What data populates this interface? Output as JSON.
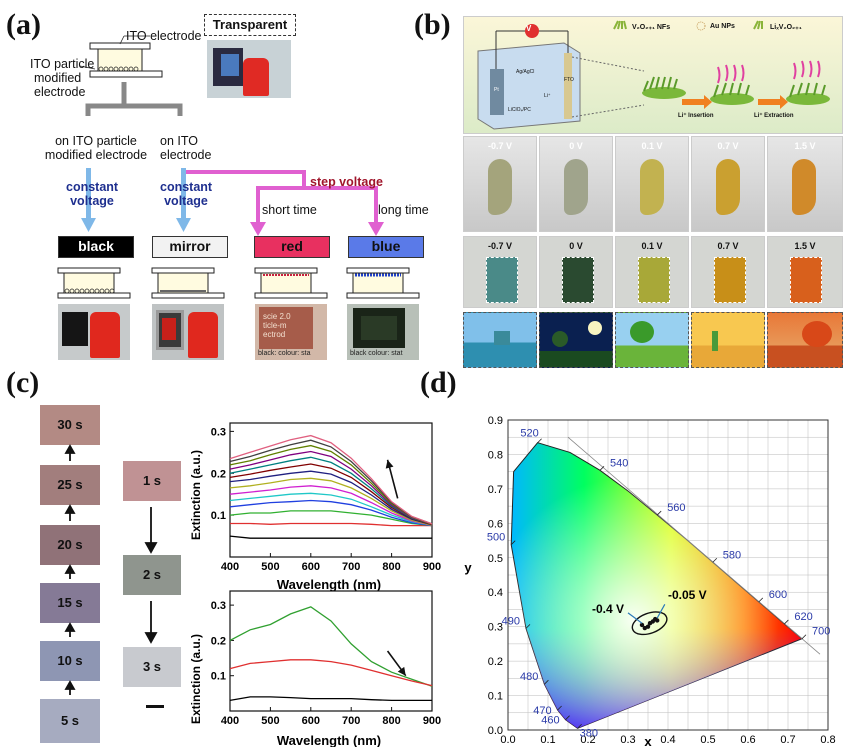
{
  "panel_labels": {
    "a": "(a)",
    "b": "(b)",
    "c": "(c)",
    "d": "(d)"
  },
  "panel_a": {
    "ito_electrode": "ITO electrode",
    "transparent": "Transparent",
    "ito_particle_modified": [
      "ITO particle",
      "modified",
      "electrode"
    ],
    "branch_left": [
      "on ITO particle",
      "modified electrode"
    ],
    "branch_right": [
      "on ITO",
      "electrode"
    ],
    "constant_voltage_left": [
      "constant",
      "voltage"
    ],
    "constant_voltage_right": [
      "constant",
      "voltage"
    ],
    "step_voltage": "step voltage",
    "short_time": "short time",
    "long_time": "long time",
    "states": [
      {
        "label": "black",
        "bg": "#000000",
        "fg": "#ffffff"
      },
      {
        "label": "mirror",
        "bg": "#f2f2f2",
        "fg": "#000000"
      },
      {
        "label": "red",
        "bg": "#e83060",
        "fg": "#000000"
      },
      {
        "label": "blue",
        "bg": "#5a7ae8",
        "fg": "#000000"
      }
    ],
    "photo_captions": [
      {
        "lines": [
          "scie 2.0",
          "ticle-m",
          "ectrod"
        ],
        "footer": "black: colour: sta"
      },
      {
        "lines": [
          "",
          "",
          ""
        ],
        "footer": "black colour: stat"
      }
    ],
    "colors": {
      "arrow_blue": "#7fb8e8",
      "arrow_magenta": "#e060d0",
      "step_red": "#a0152b",
      "text_blue": "#1e2f8f"
    }
  },
  "panel_b": {
    "legend": [
      "V₂O₂₊₁ NFs",
      "Au NPs",
      "LiₓV₂O₂₊₁"
    ],
    "cell_labels": [
      "Ag/AgCl",
      "LiClO₄/PC",
      "Li⁺",
      "FTO",
      "Pt"
    ],
    "insertion": "Li⁺ Insertion",
    "extraction": "Li⁺ Extraction",
    "meter": "V",
    "voltages_row1": [
      "-0.7 V",
      "0 V",
      "0.1 V",
      "0.7 V",
      "1.5 V"
    ],
    "voltages_row2": [
      "-0.7 V",
      "0 V",
      "0.1 V",
      "0.7 V",
      "1.5 V"
    ],
    "seahorse_colors": [
      "#a4a47c",
      "#a0a48c",
      "#c2b250",
      "#caa030",
      "#d08a2a"
    ],
    "device_colors": [
      "#4a8a88",
      "#2a4a30",
      "#a8a838",
      "#c88f18",
      "#d8601c"
    ],
    "scene_sky": [
      "#80c0ea",
      "#0a2050",
      "#98d0f0",
      "#f8c850",
      "#e87838"
    ]
  },
  "panel_c": {
    "swatches_left": [
      {
        "label": "30 s",
        "color": "#b38a84"
      },
      {
        "label": "25 s",
        "color": "#a27e7d"
      },
      {
        "label": "20 s",
        "color": "#907278"
      },
      {
        "label": "15 s",
        "color": "#857a96"
      },
      {
        "label": "10 s",
        "color": "#8e96b3"
      },
      {
        "label": "5 s",
        "color": "#a6abc0"
      }
    ],
    "swatches_right": [
      {
        "label": "1 s",
        "color": "#c09294"
      },
      {
        "label": "2 s",
        "color": "#8f958e"
      },
      {
        "label": "3 s",
        "color": "#c8cacf"
      }
    ]
  },
  "chart_data": [
    {
      "type": "line",
      "panel": "c-top",
      "xlabel": "Wavelength (nm)",
      "ylabel": "Extinction (a.u.)",
      "xlim": [
        400,
        900
      ],
      "ylim": [
        0.0,
        0.32
      ],
      "xticks": [
        400,
        500,
        600,
        700,
        800,
        900
      ],
      "yticks": [
        0.1,
        0.2,
        0.3
      ],
      "x": [
        400,
        450,
        500,
        550,
        600,
        650,
        700,
        750,
        800,
        850,
        900
      ],
      "series": [
        {
          "color": "#000000",
          "values": [
            0.05,
            0.045,
            0.045,
            0.045,
            0.045,
            0.045,
            0.045,
            0.045,
            0.045,
            0.045,
            0.045
          ]
        },
        {
          "color": "#e03030",
          "values": [
            0.08,
            0.08,
            0.078,
            0.08,
            0.08,
            0.08,
            0.08,
            0.078,
            0.075,
            0.075,
            0.075
          ]
        },
        {
          "color": "#30b030",
          "values": [
            0.1,
            0.105,
            0.105,
            0.11,
            0.11,
            0.11,
            0.105,
            0.1,
            0.09,
            0.08,
            0.075
          ]
        },
        {
          "color": "#2040e0",
          "values": [
            0.12,
            0.125,
            0.13,
            0.132,
            0.135,
            0.132,
            0.125,
            0.112,
            0.095,
            0.082,
            0.075
          ]
        },
        {
          "color": "#20c8c8",
          "values": [
            0.135,
            0.14,
            0.145,
            0.15,
            0.152,
            0.148,
            0.138,
            0.12,
            0.1,
            0.084,
            0.076
          ]
        },
        {
          "color": "#d020d0",
          "values": [
            0.15,
            0.155,
            0.16,
            0.167,
            0.17,
            0.165,
            0.152,
            0.13,
            0.105,
            0.086,
            0.076
          ]
        },
        {
          "color": "#b0b020",
          "values": [
            0.165,
            0.17,
            0.177,
            0.185,
            0.188,
            0.182,
            0.165,
            0.14,
            0.11,
            0.088,
            0.076
          ]
        },
        {
          "color": "#202080",
          "values": [
            0.18,
            0.185,
            0.193,
            0.2,
            0.205,
            0.198,
            0.178,
            0.148,
            0.114,
            0.09,
            0.077
          ]
        },
        {
          "color": "#800000",
          "values": [
            0.19,
            0.198,
            0.207,
            0.215,
            0.222,
            0.212,
            0.19,
            0.156,
            0.118,
            0.092,
            0.077
          ]
        },
        {
          "color": "#008080",
          "values": [
            0.2,
            0.21,
            0.22,
            0.23,
            0.238,
            0.226,
            0.2,
            0.163,
            0.121,
            0.093,
            0.078
          ]
        },
        {
          "color": "#800080",
          "values": [
            0.21,
            0.22,
            0.232,
            0.244,
            0.252,
            0.24,
            0.21,
            0.17,
            0.124,
            0.094,
            0.078
          ]
        },
        {
          "color": "#608000",
          "values": [
            0.22,
            0.23,
            0.244,
            0.257,
            0.266,
            0.252,
            0.22,
            0.176,
            0.127,
            0.095,
            0.078
          ]
        },
        {
          "color": "#404040",
          "values": [
            0.228,
            0.24,
            0.255,
            0.268,
            0.279,
            0.263,
            0.228,
            0.182,
            0.13,
            0.096,
            0.079
          ]
        },
        {
          "color": "#e06080",
          "values": [
            0.235,
            0.25,
            0.265,
            0.28,
            0.29,
            0.273,
            0.236,
            0.187,
            0.132,
            0.097,
            0.079
          ]
        }
      ]
    },
    {
      "type": "line",
      "panel": "c-bottom",
      "xlabel": "Wavelength (nm)",
      "ylabel": "Extinction (a.u.)",
      "xlim": [
        400,
        900
      ],
      "ylim": [
        0.0,
        0.34
      ],
      "xticks": [
        400,
        500,
        600,
        700,
        800,
        900
      ],
      "yticks": [
        0.1,
        0.2,
        0.3
      ],
      "x": [
        400,
        450,
        500,
        550,
        600,
        650,
        700,
        750,
        800,
        850,
        900
      ],
      "series": [
        {
          "color": "#30a030",
          "values": [
            0.2,
            0.23,
            0.245,
            0.275,
            0.295,
            0.255,
            0.19,
            0.14,
            0.11,
            0.09,
            0.07
          ]
        },
        {
          "color": "#e03030",
          "values": [
            0.12,
            0.135,
            0.14,
            0.145,
            0.145,
            0.14,
            0.13,
            0.115,
            0.1,
            0.085,
            0.072
          ]
        },
        {
          "color": "#000000",
          "values": [
            0.03,
            0.04,
            0.04,
            0.038,
            0.035,
            0.035,
            0.035,
            0.032,
            0.03,
            0.03,
            0.03
          ]
        }
      ]
    },
    {
      "type": "scatter",
      "panel": "d",
      "xlabel": "x",
      "ylabel": "y",
      "xlim": [
        0.0,
        0.8
      ],
      "ylim": [
        0.0,
        0.9
      ],
      "xticks": [
        0.0,
        0.1,
        0.2,
        0.3,
        0.4,
        0.5,
        0.6,
        0.7,
        0.8
      ],
      "yticks": [
        0.0,
        0.1,
        0.2,
        0.3,
        0.4,
        0.5,
        0.6,
        0.7,
        0.8,
        0.9
      ],
      "wavelength_labels": [
        {
          "label": "520",
          "x": 0.074,
          "y": 0.834
        },
        {
          "label": "540",
          "x": 0.23,
          "y": 0.754
        },
        {
          "label": "560",
          "x": 0.373,
          "y": 0.624
        },
        {
          "label": "580",
          "x": 0.512,
          "y": 0.487
        },
        {
          "label": "600",
          "x": 0.627,
          "y": 0.372
        },
        {
          "label": "620",
          "x": 0.691,
          "y": 0.308
        },
        {
          "label": "700",
          "x": 0.735,
          "y": 0.265
        },
        {
          "label": "500",
          "x": 0.008,
          "y": 0.538
        },
        {
          "label": "490",
          "x": 0.045,
          "y": 0.295
        },
        {
          "label": "480",
          "x": 0.091,
          "y": 0.133
        },
        {
          "label": "470",
          "x": 0.124,
          "y": 0.058
        },
        {
          "label": "460",
          "x": 0.144,
          "y": 0.03
        },
        {
          "label": "380",
          "x": 0.174,
          "y": 0.005
        }
      ],
      "points": [
        {
          "x": 0.335,
          "y": 0.305
        },
        {
          "x": 0.342,
          "y": 0.296
        },
        {
          "x": 0.35,
          "y": 0.3
        },
        {
          "x": 0.355,
          "y": 0.31
        },
        {
          "x": 0.362,
          "y": 0.315
        },
        {
          "x": 0.368,
          "y": 0.322
        },
        {
          "x": 0.373,
          "y": 0.318
        }
      ],
      "annotations": [
        {
          "label": "-0.05 V",
          "x": 0.4,
          "y": 0.38
        },
        {
          "label": "-0.4 V",
          "x": 0.21,
          "y": 0.34
        }
      ]
    }
  ]
}
